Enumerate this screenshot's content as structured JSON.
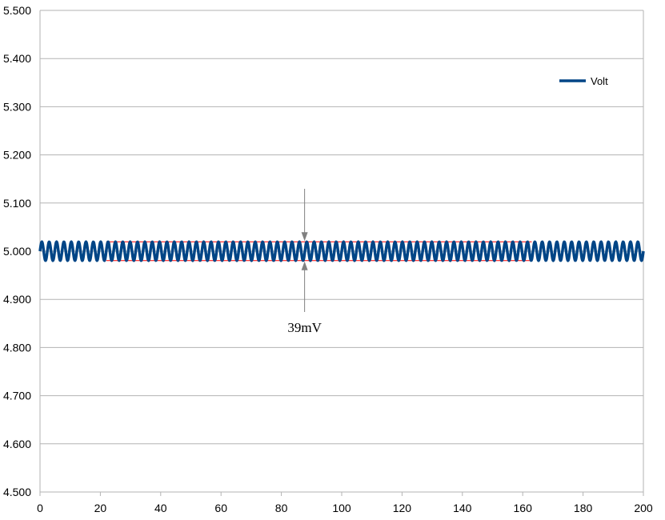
{
  "chart_data": {
    "type": "line",
    "title": "",
    "xlabel": "",
    "ylabel": "",
    "xlim": [
      0,
      200
    ],
    "ylim": [
      4.5,
      5.5
    ],
    "x_ticks": [
      0,
      20,
      40,
      60,
      80,
      100,
      120,
      140,
      160,
      180,
      200
    ],
    "x_tick_labels": [
      "0",
      "20",
      "40",
      "60",
      "80",
      "100",
      "120",
      "140",
      "160",
      "180",
      "200"
    ],
    "y_ticks": [
      4.5,
      4.6,
      4.7,
      4.8,
      4.9,
      5.0,
      5.1,
      5.2,
      5.3,
      5.4,
      5.5
    ],
    "y_tick_labels": [
      "4.500",
      "4.600",
      "4.700",
      "4.800",
      "4.900",
      "5.000",
      "5.100",
      "5.200",
      "5.300",
      "5.400",
      "5.500"
    ],
    "grid": "horizontal",
    "legend_position": "top-right",
    "series": [
      {
        "name": "Volt",
        "color": "#004586",
        "waveform": "oscillation about 5.000",
        "center": 5.0,
        "amplitude": 0.0195,
        "cycles": 82,
        "x_range": [
          0,
          200
        ]
      }
    ],
    "reference_lines": [
      {
        "y": 5.0195,
        "x_range": [
          22,
          163
        ],
        "color": "#ff0000"
      },
      {
        "y": 4.9805,
        "x_range": [
          22,
          163
        ],
        "color": "#ff0000"
      }
    ],
    "annotation": {
      "text": "39mV",
      "x": 87.7,
      "arrow_color": "#808080"
    }
  }
}
